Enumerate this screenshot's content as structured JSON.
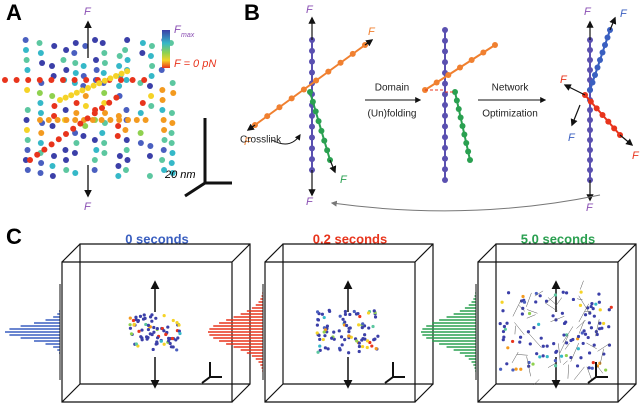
{
  "panels": {
    "a": {
      "label": "A",
      "force_symbol": "F",
      "colorbar_max": "F",
      "colorbar_max_sub": "max",
      "colorbar_min": "F = 0 pN",
      "scale": "20 nm"
    },
    "b": {
      "label": "B",
      "force_symbol": "F",
      "step1_line1": "Domain",
      "step1_line2": "(Un)folding",
      "step2_line1": "Network",
      "step2_line2": "Optimization",
      "crosslink": "Crosslink"
    },
    "c": {
      "label": "C",
      "times": [
        "0 seconds",
        "0.2 seconds",
        "5.0 seconds"
      ]
    }
  }
}
